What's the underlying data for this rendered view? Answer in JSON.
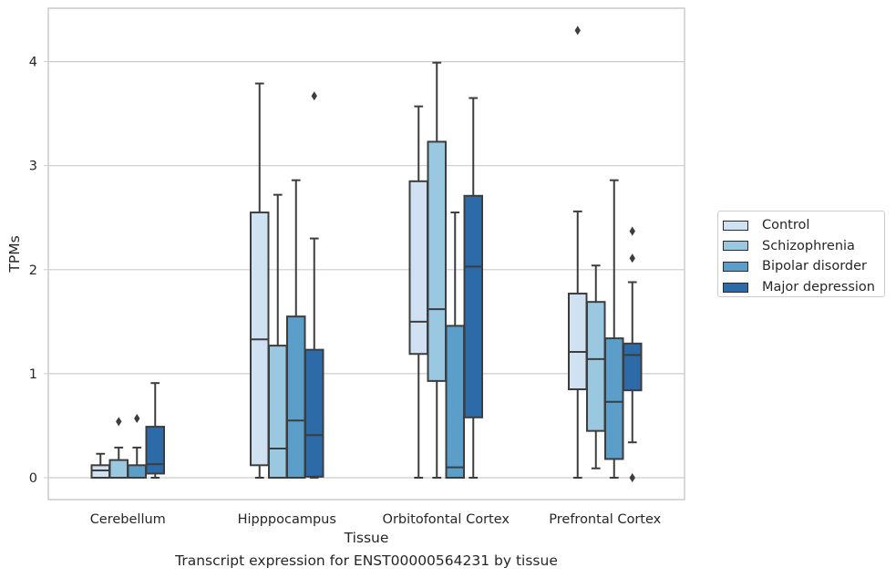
{
  "chart_data": {
    "type": "box",
    "title": "",
    "xlabel": "Tissue",
    "ylabel": "TPMs",
    "ylim": [
      -0.2,
      4.5
    ],
    "yticks": [
      0,
      1,
      2,
      3,
      4
    ],
    "grid": "horizontal",
    "legend_position": "right",
    "categories": [
      "Cerebellum",
      "Hipppocampus",
      "Orbitofontal Cortex",
      "Prefrontal Cortex"
    ],
    "series": [
      {
        "name": "Control",
        "color": "#d0e2f2",
        "boxes": [
          {
            "whisker_low": 0.0,
            "q1": 0.0,
            "median": 0.07,
            "q3": 0.12,
            "whisker_high": 0.23,
            "outliers": []
          },
          {
            "whisker_low": 0.0,
            "q1": 0.12,
            "median": 1.33,
            "q3": 2.55,
            "whisker_high": 3.79,
            "outliers": []
          },
          {
            "whisker_low": 0.0,
            "q1": 1.19,
            "median": 1.5,
            "q3": 2.85,
            "whisker_high": 3.57,
            "outliers": []
          },
          {
            "whisker_low": 0.0,
            "q1": 0.85,
            "median": 1.21,
            "q3": 1.77,
            "whisker_high": 2.56,
            "outliers": [
              4.3
            ]
          }
        ]
      },
      {
        "name": "Schizophrenia",
        "color": "#9ac8e0",
        "boxes": [
          {
            "whisker_low": 0.0,
            "q1": 0.0,
            "median": 0.0,
            "q3": 0.17,
            "whisker_high": 0.29,
            "outliers": [
              0.54
            ]
          },
          {
            "whisker_low": 0.0,
            "q1": 0.0,
            "median": 0.28,
            "q3": 1.27,
            "whisker_high": 2.72,
            "outliers": []
          },
          {
            "whisker_low": 0.0,
            "q1": 0.93,
            "median": 1.62,
            "q3": 3.23,
            "whisker_high": 3.99,
            "outliers": []
          },
          {
            "whisker_low": 0.09,
            "q1": 0.45,
            "median": 1.14,
            "q3": 1.69,
            "whisker_high": 2.04,
            "outliers": []
          }
        ]
      },
      {
        "name": "Bipolar disorder",
        "color": "#5a9ec9",
        "boxes": [
          {
            "whisker_low": 0.0,
            "q1": 0.0,
            "median": 0.0,
            "q3": 0.12,
            "whisker_high": 0.29,
            "outliers": [
              0.57
            ]
          },
          {
            "whisker_low": 0.0,
            "q1": 0.0,
            "median": 0.55,
            "q3": 1.55,
            "whisker_high": 2.86,
            "outliers": []
          },
          {
            "whisker_low": 0.0,
            "q1": 0.0,
            "median": 0.1,
            "q3": 1.46,
            "whisker_high": 2.55,
            "outliers": []
          },
          {
            "whisker_low": 0.0,
            "q1": 0.18,
            "median": 0.73,
            "q3": 1.34,
            "whisker_high": 2.86,
            "outliers": []
          }
        ]
      },
      {
        "name": "Major depression",
        "color": "#2c6aa8",
        "boxes": [
          {
            "whisker_low": 0.0,
            "q1": 0.04,
            "median": 0.13,
            "q3": 0.49,
            "whisker_high": 0.91,
            "outliers": []
          },
          {
            "whisker_low": 0.0,
            "q1": 0.01,
            "median": 0.41,
            "q3": 1.23,
            "whisker_high": 2.3,
            "outliers": [
              3.67
            ]
          },
          {
            "whisker_low": 0.0,
            "q1": 0.58,
            "median": 2.03,
            "q3": 2.71,
            "whisker_high": 3.65,
            "outliers": []
          },
          {
            "whisker_low": 0.34,
            "q1": 0.84,
            "median": 1.18,
            "q3": 1.29,
            "whisker_high": 1.88,
            "outliers": [
              0.0,
              2.11,
              2.37
            ]
          }
        ]
      }
    ]
  },
  "caption": "Transcript expression for ENST00000564231 by tissue"
}
